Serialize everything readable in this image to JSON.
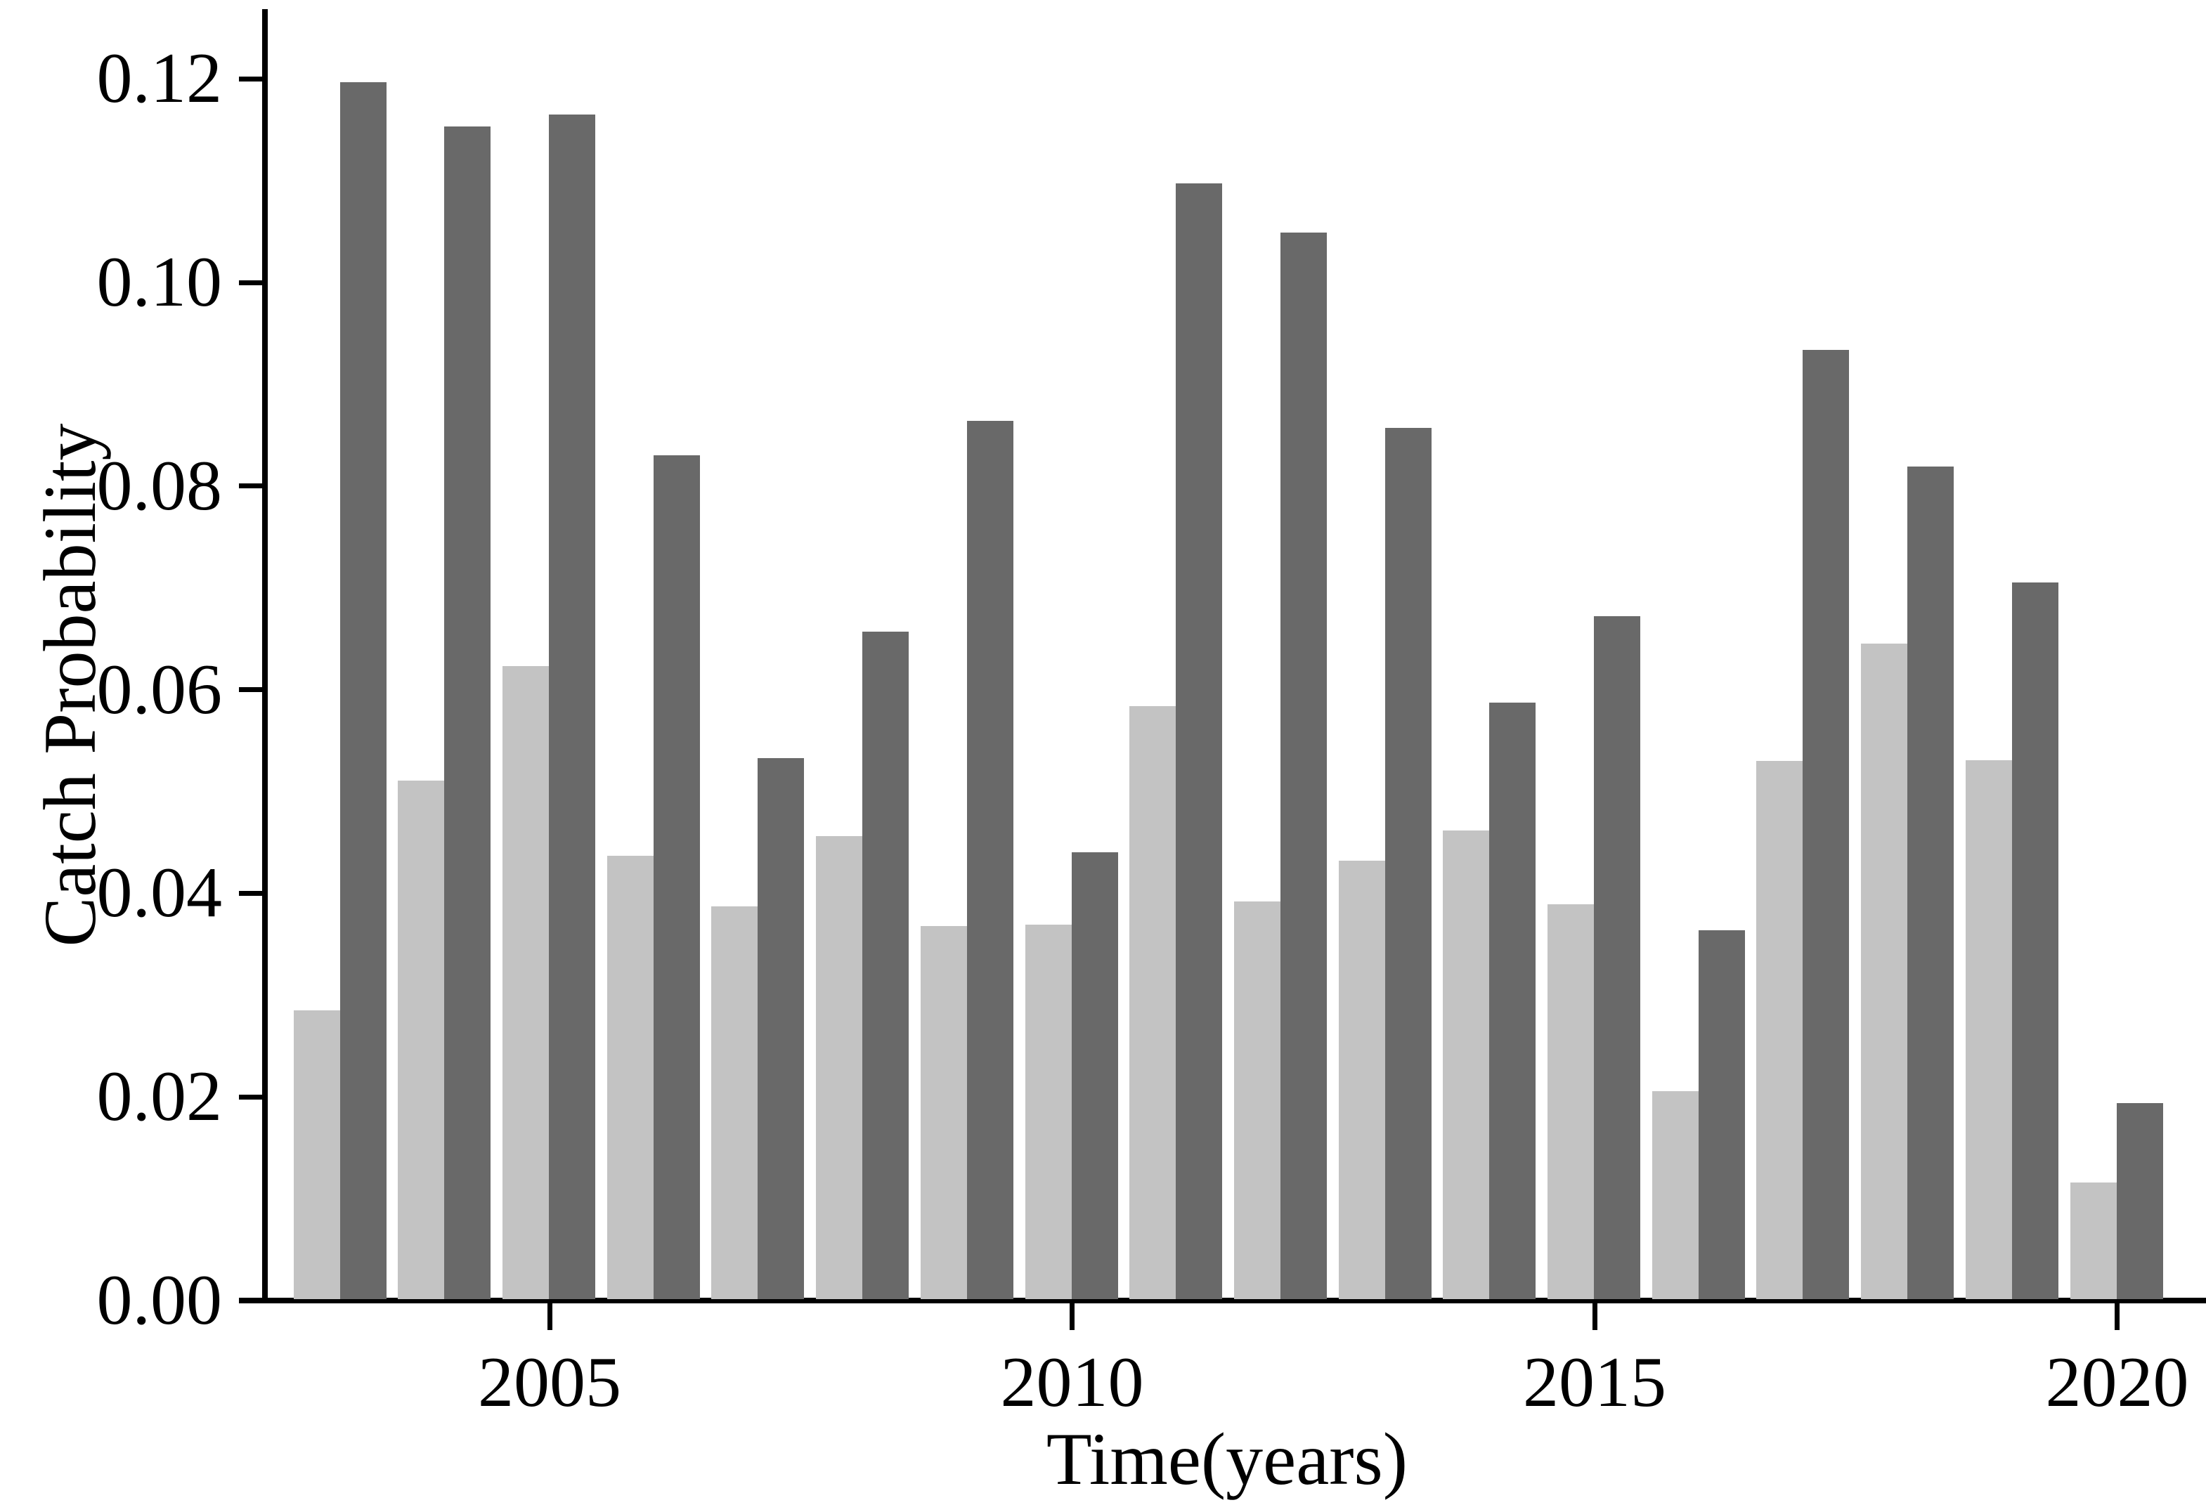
{
  "chart_data": {
    "type": "bar",
    "title": "",
    "xlabel": "Time(years)",
    "ylabel": "Catch Probability",
    "categories": [
      2003,
      2004,
      2005,
      2006,
      2007,
      2008,
      2009,
      2010,
      2011,
      2012,
      2013,
      2014,
      2015,
      2016,
      2017,
      2018,
      2019,
      2020
    ],
    "series": [
      {
        "name": "light-gray-series",
        "color": "#c3c3c3",
        "values": [
          0.0285,
          0.0511,
          0.0623,
          0.0437,
          0.0387,
          0.0456,
          0.0368,
          0.0369,
          0.0584,
          0.0392,
          0.0432,
          0.0462,
          0.0389,
          0.0206,
          0.053,
          0.0645,
          0.0531,
          0.0116
        ]
      },
      {
        "name": "dark-gray-series",
        "color": "#696969",
        "values": [
          0.1197,
          0.1153,
          0.1165,
          0.083,
          0.0533,
          0.0657,
          0.0864,
          0.044,
          0.1097,
          0.1049,
          0.0857,
          0.0587,
          0.0672,
          0.0364,
          0.0934,
          0.0819,
          0.0705,
          0.0194
        ]
      }
    ],
    "x_ticks": [
      2005,
      2010,
      2015,
      2020
    ],
    "y_ticks": [
      0.0,
      0.02,
      0.04,
      0.06,
      0.08,
      0.1,
      0.12
    ],
    "y_tick_labels": [
      "0.00",
      "0.02",
      "0.04",
      "0.06",
      "0.08",
      "0.10",
      "0.12"
    ],
    "xlim": [
      2002.3,
      2020.9
    ],
    "ylim": [
      0,
      0.1268
    ],
    "grid": false,
    "legend": "none",
    "axis_color": "#000000",
    "background_color": "#ffffff"
  }
}
